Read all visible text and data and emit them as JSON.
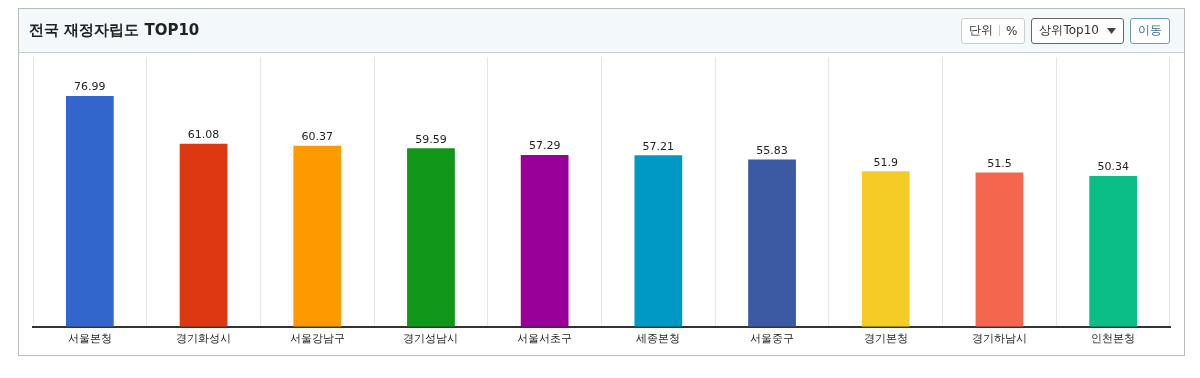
{
  "chart_data": {
    "type": "bar",
    "title": "전국 재정자립도 TOP10",
    "annotations": [
      "단위",
      "%",
      "상위Top10",
      "이동"
    ],
    "categories": [
      "서울본청",
      "경기화성시",
      "서울강남구",
      "경기성남시",
      "서울서초구",
      "세종본청",
      "서울중구",
      "경기본청",
      "경기하남시",
      "인천본청"
    ],
    "values": [
      76.99,
      61.08,
      60.37,
      59.59,
      57.29,
      57.21,
      55.83,
      51.9,
      51.5,
      50.34
    ],
    "colors": [
      "#3366cc",
      "#dc3912",
      "#ff9900",
      "#109618",
      "#990099",
      "#0099c6",
      "#3b5aa3",
      "#f5cb25",
      "#f4674e",
      "#0bbd87"
    ],
    "data_labels": true,
    "grid": "x",
    "relative": false,
    "legend": false
  }
}
